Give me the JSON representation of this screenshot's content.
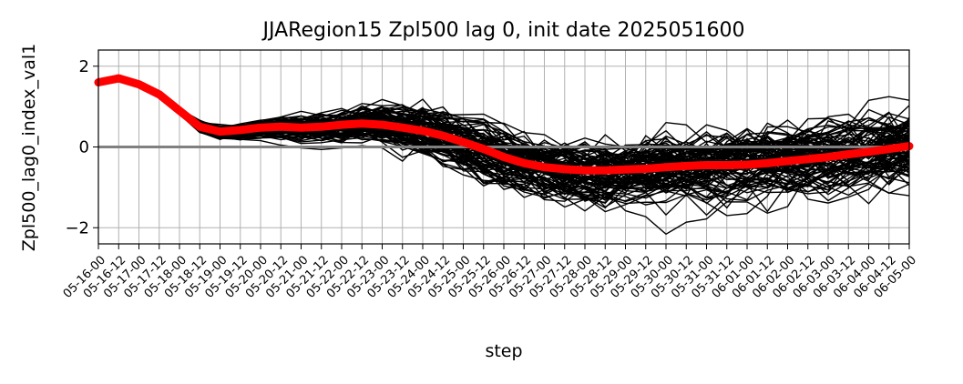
{
  "chart_data": {
    "type": "line",
    "title": "JJARegion15 Zpl500 lag 0, init date 2025051600",
    "xlabel": "step",
    "ylabel": "Zpl500_lag0_index_val1",
    "ylim": [
      -2.4,
      2.4
    ],
    "yticks": [
      -2,
      0,
      2
    ],
    "grid": true,
    "categories": [
      "05-16-00",
      "05-16-12",
      "05-17-00",
      "05-17-12",
      "05-18-00",
      "05-18-12",
      "05-19-00",
      "05-19-12",
      "05-20-00",
      "05-20-12",
      "05-21-00",
      "05-21-12",
      "05-22-00",
      "05-22-12",
      "05-23-00",
      "05-23-12",
      "05-24-00",
      "05-24-12",
      "05-25-00",
      "05-25-12",
      "05-26-00",
      "05-26-12",
      "05-27-00",
      "05-27-12",
      "05-28-00",
      "05-28-12",
      "05-29-00",
      "05-29-12",
      "05-30-00",
      "05-30-12",
      "05-31-00",
      "05-31-12",
      "06-01-00",
      "06-01-12",
      "06-02-00",
      "06-02-12",
      "06-03-00",
      "06-03-12",
      "06-04-00",
      "06-04-12",
      "06-05-00"
    ],
    "reference_line": {
      "y": 0,
      "color": "#808080"
    },
    "ensemble": {
      "color": "#000000",
      "member_count": 100,
      "initial_values": [
        1.6,
        1.7,
        1.55,
        1.3,
        0.95,
        0.5
      ],
      "spread_by_step": [
        0.0,
        0.0,
        0.0,
        0.0,
        0.08,
        0.15,
        0.18,
        0.2,
        0.22,
        0.25,
        0.3,
        0.35,
        0.4,
        0.45,
        0.5,
        0.55,
        0.6,
        0.62,
        0.65,
        0.68,
        0.7,
        0.72,
        0.72,
        0.74,
        0.75,
        0.76,
        0.78,
        0.8,
        0.82,
        0.83,
        0.85,
        0.86,
        0.88,
        0.9,
        0.9,
        0.92,
        0.93,
        0.95,
        0.95,
        0.96,
        0.97
      ]
    },
    "series": [
      {
        "color": "#ff0000",
        "values": [
          1.6,
          1.7,
          1.55,
          1.3,
          0.9,
          0.5,
          0.38,
          0.42,
          0.48,
          0.5,
          0.48,
          0.5,
          0.55,
          0.58,
          0.55,
          0.48,
          0.4,
          0.28,
          0.12,
          -0.05,
          -0.25,
          -0.4,
          -0.5,
          -0.55,
          -0.58,
          -0.58,
          -0.56,
          -0.54,
          -0.5,
          -0.47,
          -0.45,
          -0.45,
          -0.44,
          -0.4,
          -0.35,
          -0.3,
          -0.25,
          -0.18,
          -0.12,
          -0.05,
          0.02
        ]
      }
    ]
  }
}
